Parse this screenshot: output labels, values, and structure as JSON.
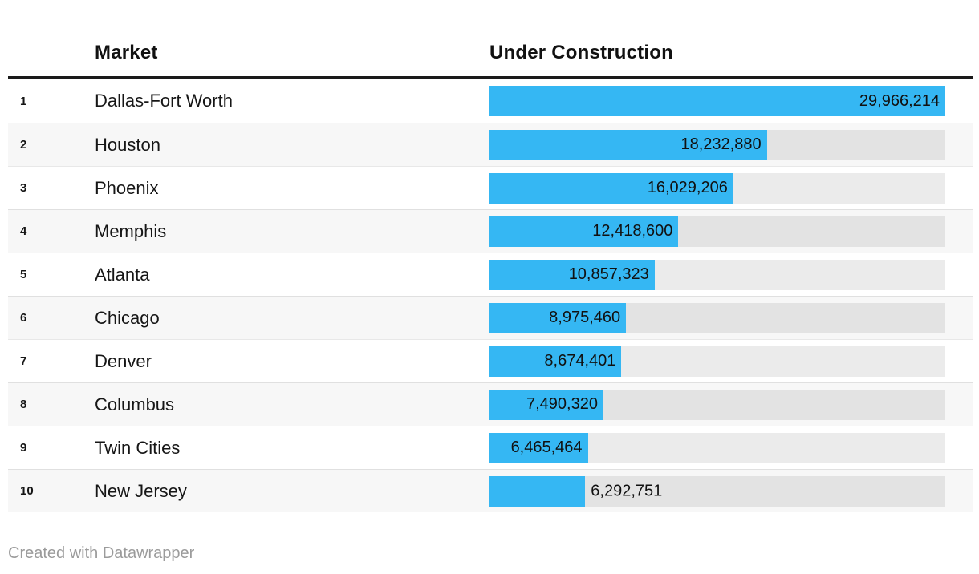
{
  "chart_data": {
    "type": "bar",
    "orientation": "horizontal",
    "column_headers": [
      "Market",
      "Under Construction"
    ],
    "ranks": [
      "1",
      "2",
      "3",
      "4",
      "5",
      "6",
      "7",
      "8",
      "9",
      "10"
    ],
    "categories": [
      "Dallas-Fort Worth",
      "Houston",
      "Phoenix",
      "Memphis",
      "Atlanta",
      "Chicago",
      "Denver",
      "Columbus",
      "Twin Cities",
      "New Jersey"
    ],
    "values": [
      29966214,
      18232880,
      16029206,
      12418600,
      10857323,
      8975460,
      8674401,
      7490320,
      6465464,
      6292751
    ],
    "value_labels": [
      "29,966,214",
      "18,232,880",
      "16,029,206",
      "12,418,600",
      "10,857,323",
      "8,975,460",
      "8,674,401",
      "7,490,320",
      "6,465,464",
      "6,292,751"
    ],
    "value_label_positions": [
      "inside",
      "inside",
      "inside",
      "inside",
      "inside",
      "inside",
      "inside",
      "inside",
      "inside",
      "outside"
    ],
    "xlim": [
      0,
      29966214
    ],
    "bar_color": "#35b7f3",
    "track_color": "rgba(0,0,0,0.08)",
    "row_stripe_colors": [
      "#ffffff",
      "#f7f7f7"
    ],
    "header_rule_color": "#1a1a1a",
    "grid": false,
    "legend": false
  },
  "footer": {
    "credit": "Created with Datawrapper"
  }
}
